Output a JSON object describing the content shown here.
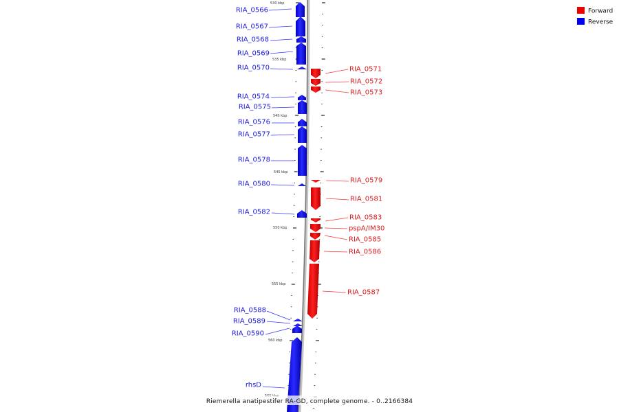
{
  "legend": {
    "forward": {
      "label": "Forward",
      "color": "#ee0000"
    },
    "reverse": {
      "label": "Reverse",
      "color": "#0000ee"
    }
  },
  "caption": "Riemerella anatipestifer RA-GD, complete genome. - 0..2166384",
  "scale_labels": [
    "530 kbp",
    "535 kbp",
    "540 kbp",
    "545 kbp",
    "550 kbp",
    "555 kbp",
    "560 kbp",
    "565 kbp"
  ],
  "genes": {
    "reverse": [
      "RIA_0566",
      "RIA_0567",
      "RIA_0568",
      "RIA_0569",
      "RIA_0570",
      "RIA_0574",
      "RIA_0575",
      "RIA_0576",
      "RIA_0577",
      "RIA_0578",
      "RIA_0580",
      "RIA_0582",
      "RIA_0588",
      "RIA_0589",
      "RIA_0590",
      "rhsD"
    ],
    "forward": [
      "RIA_0571",
      "RIA_0572",
      "RIA_0573",
      "RIA_0579",
      "RIA_0581",
      "RIA_0583",
      "pspA/IM30",
      "RIA_0585",
      "RIA_0586",
      "RIA_0587"
    ]
  }
}
